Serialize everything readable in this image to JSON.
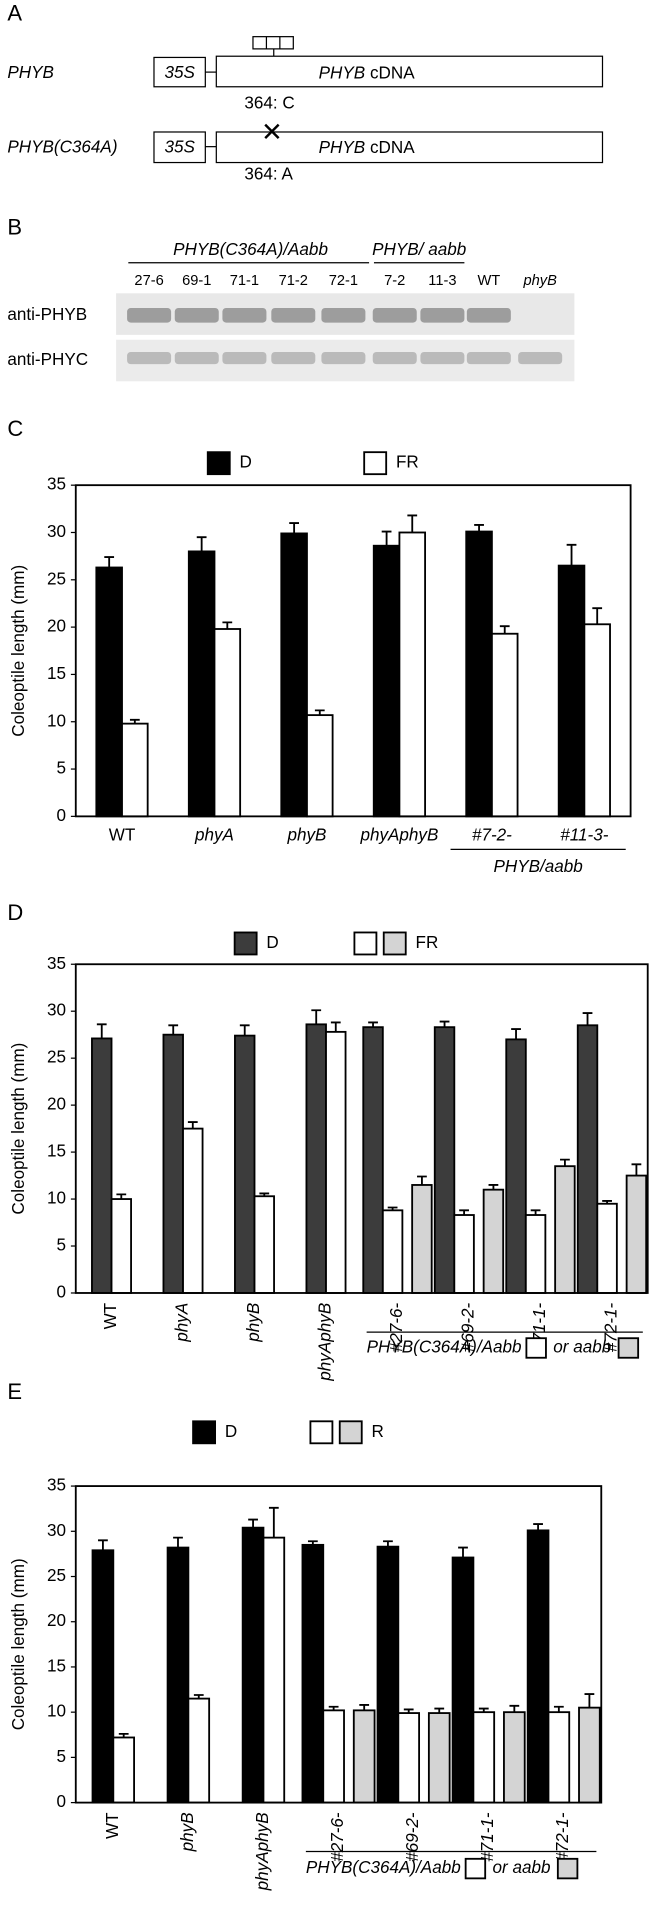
{
  "diagram": {
    "label": "A",
    "constructs": [
      {
        "name": "PHYB",
        "promoter": "35S",
        "gene": [
          "PHYB",
          "cDNA"
        ],
        "site": "364: C"
      },
      {
        "name": "PHYB(C364A)",
        "promoter": "35S",
        "gene": [
          "PHYB",
          "cDNA"
        ],
        "site": "364: A"
      }
    ]
  },
  "blot": {
    "label": "B",
    "groups": [
      "PHYB(C364A)/Aabb",
      "PHYB/ aabb"
    ],
    "lanes": [
      "27-6",
      "69-1",
      "71-1",
      "71-2",
      "72-1",
      "7-2",
      "11-3",
      "WT",
      "phyB"
    ],
    "rows": [
      "anti-PHYB",
      "anti-PHYC"
    ]
  },
  "chart_data": [
    {
      "type": "bar",
      "label": "C",
      "ylabel": "Coleoptile length (mm)",
      "ylim": [
        0,
        35
      ],
      "yticks": [
        0,
        5,
        10,
        15,
        20,
        25,
        30,
        35
      ],
      "categories": [
        "WT",
        "phyA",
        "phyB",
        "phyAphyB",
        "#7-2-",
        "#11-3-"
      ],
      "category_italic": [
        false,
        true,
        true,
        true,
        true,
        true
      ],
      "group_label": "PHYB/aabb",
      "series": [
        {
          "name": "D",
          "color": "#000000",
          "values": [
            26.3,
            28.0,
            29.9,
            28.6,
            30.1,
            26.5
          ],
          "errors": [
            1.1,
            1.5,
            1.1,
            1.5,
            0.7,
            2.2
          ]
        },
        {
          "name": "FR",
          "color": "#ffffff",
          "values": [
            9.8,
            19.8,
            10.7,
            30.0,
            19.3,
            20.3
          ],
          "errors": [
            0.4,
            0.7,
            0.5,
            1.8,
            0.8,
            1.7
          ]
        }
      ]
    },
    {
      "type": "bar",
      "label": "D",
      "ylabel": "Coleoptile length (mm)",
      "ylim": [
        0,
        35
      ],
      "yticks": [
        0,
        5,
        10,
        15,
        20,
        25,
        30,
        35
      ],
      "categories": [
        "WT",
        "phyA",
        "phyB",
        "phyAphyB",
        "#27-6-",
        "#69-2-",
        "#71-1-",
        "#72-1-"
      ],
      "category_italic": [
        false,
        true,
        true,
        true,
        true,
        true,
        true,
        true
      ],
      "group_label": "PHYB(C364A)/Aabb",
      "group_label_2": "or aabb",
      "series": [
        {
          "name": "D",
          "color": "#3c3c3c",
          "values": [
            27.1,
            27.5,
            27.4,
            28.6,
            28.3,
            28.3,
            27.0,
            28.5
          ],
          "errors": [
            1.5,
            1.0,
            1.1,
            1.5,
            0.5,
            0.6,
            1.1,
            1.3
          ]
        },
        {
          "name": "FR",
          "color": "#ffffff",
          "values": [
            10.0,
            17.5,
            10.3,
            27.8,
            8.8,
            8.3,
            8.3,
            9.5
          ],
          "errors": [
            0.5,
            0.7,
            0.3,
            1.0,
            0.3,
            0.5,
            0.5,
            0.3
          ]
        },
        {
          "color": "#d4d4d4",
          "values": [
            null,
            null,
            null,
            null,
            11.5,
            11.0,
            13.5,
            12.5
          ],
          "errors": [
            null,
            null,
            null,
            null,
            0.9,
            0.5,
            0.7,
            1.2
          ]
        }
      ]
    },
    {
      "type": "bar",
      "label": "E",
      "ylabel": "Coleoptile length (mm)",
      "ylim": [
        0,
        35
      ],
      "yticks": [
        0,
        5,
        10,
        15,
        20,
        25,
        30,
        35
      ],
      "categories": [
        "WT",
        "phyB",
        "phyAphyB",
        "#27-6-",
        "#69-2-",
        "#71-1-",
        "#72-1-"
      ],
      "category_italic": [
        false,
        true,
        true,
        true,
        true,
        true,
        true
      ],
      "group_label": "PHYB(C364A)/Aabb",
      "group_label_2": "or aabb",
      "series": [
        {
          "name": "D",
          "color": "#000000",
          "values": [
            27.9,
            28.2,
            30.4,
            28.5,
            28.3,
            27.1,
            30.1
          ],
          "errors": [
            1.1,
            1.1,
            0.9,
            0.4,
            0.6,
            1.1,
            0.7
          ]
        },
        {
          "name": "R",
          "color": "#ffffff",
          "values": [
            7.2,
            11.5,
            29.3,
            10.2,
            9.9,
            10.0,
            10.0
          ],
          "errors": [
            0.4,
            0.4,
            3.3,
            0.4,
            0.4,
            0.4,
            0.6
          ]
        },
        {
          "color": "#d4d4d4",
          "values": [
            null,
            null,
            null,
            10.2,
            9.9,
            10.0,
            10.5
          ],
          "errors": [
            null,
            null,
            null,
            0.6,
            0.5,
            0.7,
            1.5
          ]
        }
      ]
    }
  ]
}
